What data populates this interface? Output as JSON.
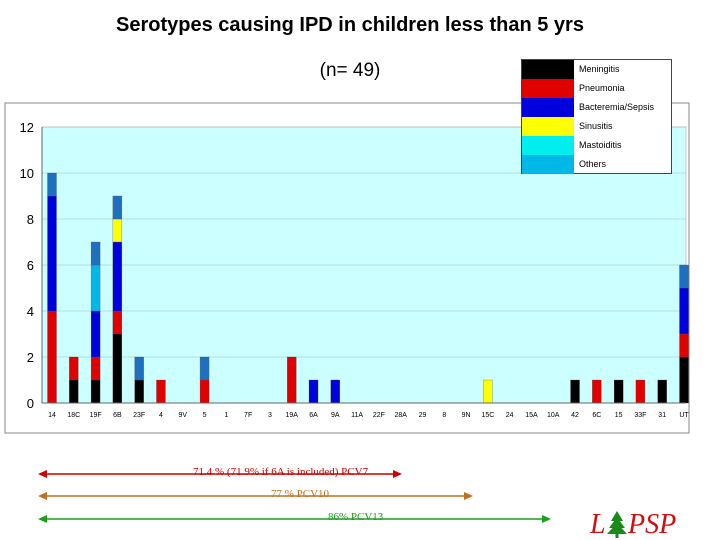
{
  "header": {
    "title": "Serotypes causing IPD in children less than 5 yrs",
    "subtitle": "(n= 49)"
  },
  "chart_data": {
    "type": "bar",
    "stacked": true,
    "categories": [
      "14",
      "18C",
      "19F",
      "6B",
      "23F",
      "4",
      "9V",
      "5",
      "1",
      "7F",
      "3",
      "19A",
      "6A",
      "9A",
      "11A",
      "22F",
      "28A",
      "29",
      "8",
      "9N",
      "15C",
      "24",
      "15A",
      "10A",
      "42",
      "6C",
      "15",
      "33F",
      "31",
      "UT"
    ],
    "series": [
      {
        "name": "Meningitis",
        "color": "#000000",
        "values": [
          0,
          1,
          1,
          3,
          1,
          0,
          0,
          0,
          0,
          0,
          0,
          0,
          0,
          0,
          0,
          0,
          0,
          0,
          0,
          0,
          0,
          0,
          0,
          0,
          1,
          0,
          1,
          0,
          1,
          2
        ]
      },
      {
        "name": "Pneumonia",
        "color": "#e00000",
        "values": [
          4,
          1,
          1,
          1,
          0,
          1,
          0,
          1,
          0,
          0,
          0,
          2,
          0,
          0,
          0,
          0,
          0,
          0,
          0,
          0,
          0,
          0,
          0,
          0,
          0,
          1,
          0,
          1,
          0,
          1
        ]
      },
      {
        "name": "Bacteremia/Sepsis",
        "color": "#0000dd",
        "values": [
          5,
          0,
          2,
          3,
          0,
          0,
          0,
          0,
          0,
          0,
          0,
          0,
          1,
          1,
          0,
          0,
          0,
          0,
          0,
          0,
          0,
          0,
          0,
          0,
          0,
          0,
          0,
          0,
          0,
          2
        ]
      },
      {
        "name": "Sinusitis",
        "color": "#ffff00",
        "values": [
          0,
          0,
          0,
          1,
          0,
          0,
          0,
          0,
          0,
          0,
          0,
          0,
          0,
          0,
          0,
          0,
          0,
          0,
          0,
          0,
          1,
          0,
          0,
          0,
          0,
          0,
          0,
          0,
          0,
          0
        ]
      },
      {
        "name": "Mastoiditis",
        "color": "#00eeee",
        "values": [
          0,
          0,
          0,
          0,
          0,
          0,
          0,
          0,
          0,
          0,
          0,
          0,
          0,
          0,
          0,
          0,
          0,
          0,
          0,
          0,
          0,
          0,
          0,
          0,
          0,
          0,
          0,
          0,
          0,
          0
        ]
      },
      {
        "name": "Others",
        "color": "#00b8e8",
        "values": [
          0,
          0,
          2,
          0,
          0,
          0,
          0,
          0,
          0,
          0,
          0,
          0,
          0,
          0,
          0,
          0,
          0,
          0,
          0,
          0,
          0,
          0,
          0,
          0,
          0,
          0,
          0,
          0,
          0,
          0
        ]
      },
      {
        "name": "",
        "color": "#1f6fc0",
        "values": [
          1,
          0,
          1,
          1,
          1,
          0,
          0,
          1,
          0,
          0,
          0,
          0,
          0,
          0,
          0,
          0,
          0,
          0,
          0,
          0,
          0,
          0,
          0,
          0,
          0,
          0,
          0,
          0,
          0,
          1
        ]
      }
    ],
    "ylim": [
      0,
      12
    ],
    "yticks": [
      0,
      2,
      4,
      6,
      8,
      10,
      12
    ],
    "grid": true,
    "plot_background": "#ccffff",
    "legend_position": "top-right"
  },
  "annotations": [
    {
      "text": "71.4 % (71.9% if 6A is included) PCV7",
      "color": "#cc0000"
    },
    {
      "text": "77 % PCV10",
      "color": "#c07020"
    },
    {
      "text": "86% PCV13",
      "color": "#1aa01a"
    }
  ],
  "logo": {
    "text": "LPSP",
    "color": "#d01010",
    "accent": "#1a8a1a"
  }
}
